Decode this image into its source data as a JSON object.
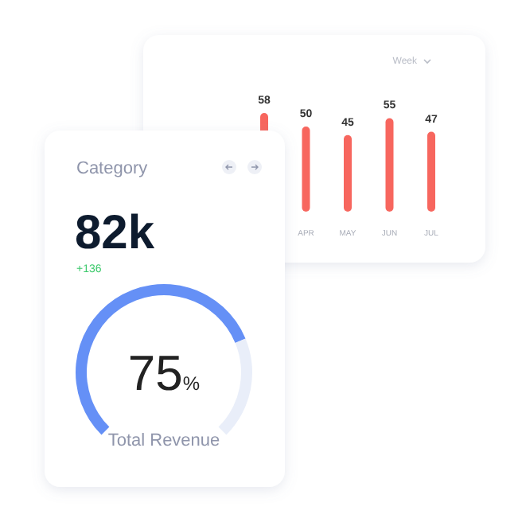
{
  "chart_data": [
    {
      "type": "bar",
      "categories": [
        null,
        "APR",
        "MAY",
        "JUN",
        "JUL"
      ],
      "values": [
        58,
        50,
        45,
        55,
        47
      ],
      "color": "#f7665e",
      "data_labels": true,
      "annotations": [
        "Week"
      ]
    },
    {
      "type": "donut",
      "title": "Category",
      "categories": [
        null,
        null
      ],
      "values": [
        75,
        25
      ],
      "colors": [
        "#6590f6",
        "#e9eef9"
      ],
      "annotations": [
        "82k",
        "+136",
        "75%",
        "Total Revenue"
      ]
    }
  ]
}
